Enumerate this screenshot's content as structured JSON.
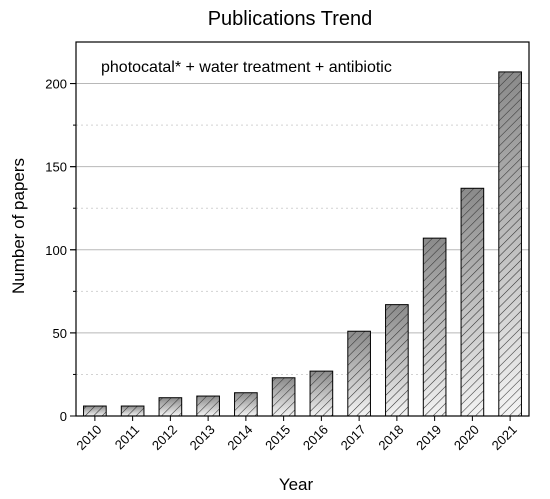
{
  "chart_data": {
    "type": "bar",
    "title": "Publications Trend",
    "annotation": "photocatal* + water treatment + antibiotic",
    "xlabel": "Year",
    "ylabel": "Number of papers",
    "categories": [
      "2010",
      "2011",
      "2012",
      "2013",
      "2014",
      "2015",
      "2016",
      "2017",
      "2018",
      "2019",
      "2020",
      "2021"
    ],
    "values": [
      6,
      6,
      11,
      12,
      14,
      23,
      27,
      51,
      67,
      107,
      137,
      207
    ],
    "ylim": [
      0,
      225
    ],
    "yticks": [
      0,
      50,
      100,
      150,
      200
    ],
    "grid": true,
    "bar_style": "hatched",
    "bar_colors": {
      "top": "#8a8a8a",
      "bottom": "#f4f4f4",
      "stroke": "#000000",
      "hatch": "#333333"
    }
  }
}
